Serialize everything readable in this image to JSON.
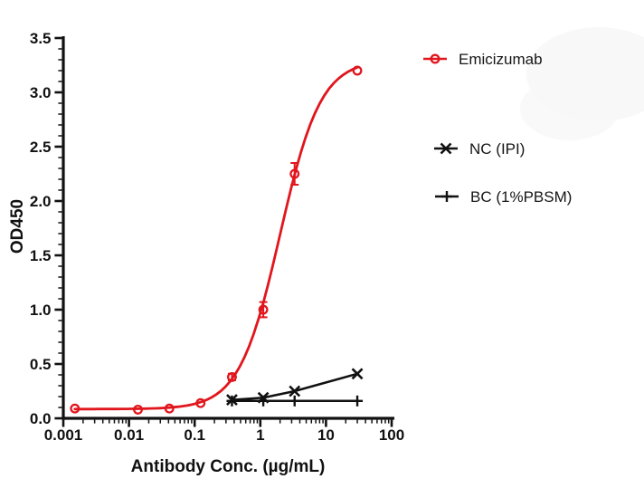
{
  "chart_data": {
    "type": "line",
    "subtype": "dose-response-4PL",
    "xlabel": "Antibody Conc. (µg/mL)",
    "ylabel": "OD450",
    "x_scale": "log10",
    "xlim": [
      0.001,
      100
    ],
    "ylim": [
      0,
      3.5
    ],
    "grid": false,
    "legend_position": "right-outside",
    "axis_color": "#111111",
    "background_color": "#ffffff",
    "x_ticks": [
      {
        "value": 0.001,
        "label": "0.001"
      },
      {
        "value": 0.01,
        "label": "0.01"
      },
      {
        "value": 0.1,
        "label": "0.1"
      },
      {
        "value": 1,
        "label": "1"
      },
      {
        "value": 10,
        "label": "10"
      },
      {
        "value": 100,
        "label": "100"
      }
    ],
    "y_ticks": [
      {
        "value": 0.0,
        "label": "0.0"
      },
      {
        "value": 0.5,
        "label": "0.5"
      },
      {
        "value": 1.0,
        "label": "1.0"
      },
      {
        "value": 1.5,
        "label": "1.5"
      },
      {
        "value": 2.0,
        "label": "2.0"
      },
      {
        "value": 2.5,
        "label": "2.5"
      },
      {
        "value": 3.0,
        "label": "3.0"
      },
      {
        "value": 3.5,
        "label": "3.5"
      }
    ],
    "y_minor_step": 0.1,
    "series": [
      {
        "name": "Emicizumab",
        "color": "#e1161d",
        "marker": "open-circle",
        "line": "4pl-fit",
        "fit": {
          "bottom": 0.085,
          "top": 3.3,
          "ec50": 2.0,
          "hill": 1.4
        },
        "x": [
          0.0015,
          0.0137,
          0.0412,
          0.123,
          0.37,
          1.11,
          3.33,
          30
        ],
        "y": [
          0.09,
          0.08,
          0.09,
          0.14,
          0.38,
          1.0,
          2.25,
          3.2
        ],
        "y_err": [
          0,
          0,
          0,
          0,
          0.03,
          0.07,
          0.1,
          0
        ]
      },
      {
        "name": "NC (IPI)",
        "color": "#111111",
        "marker": "x",
        "line": "straight",
        "x": [
          0.37,
          1.11,
          3.33,
          30
        ],
        "y": [
          0.17,
          0.19,
          0.25,
          0.41
        ],
        "y_err": [
          0,
          0,
          0,
          0
        ]
      },
      {
        "name": "BC (1%PBSM)",
        "color": "#111111",
        "marker": "plus",
        "line": "straight",
        "x": [
          0.37,
          1.11,
          3.33,
          30
        ],
        "y": [
          0.16,
          0.16,
          0.16,
          0.16
        ],
        "y_err": [
          0,
          0,
          0,
          0
        ]
      }
    ]
  }
}
